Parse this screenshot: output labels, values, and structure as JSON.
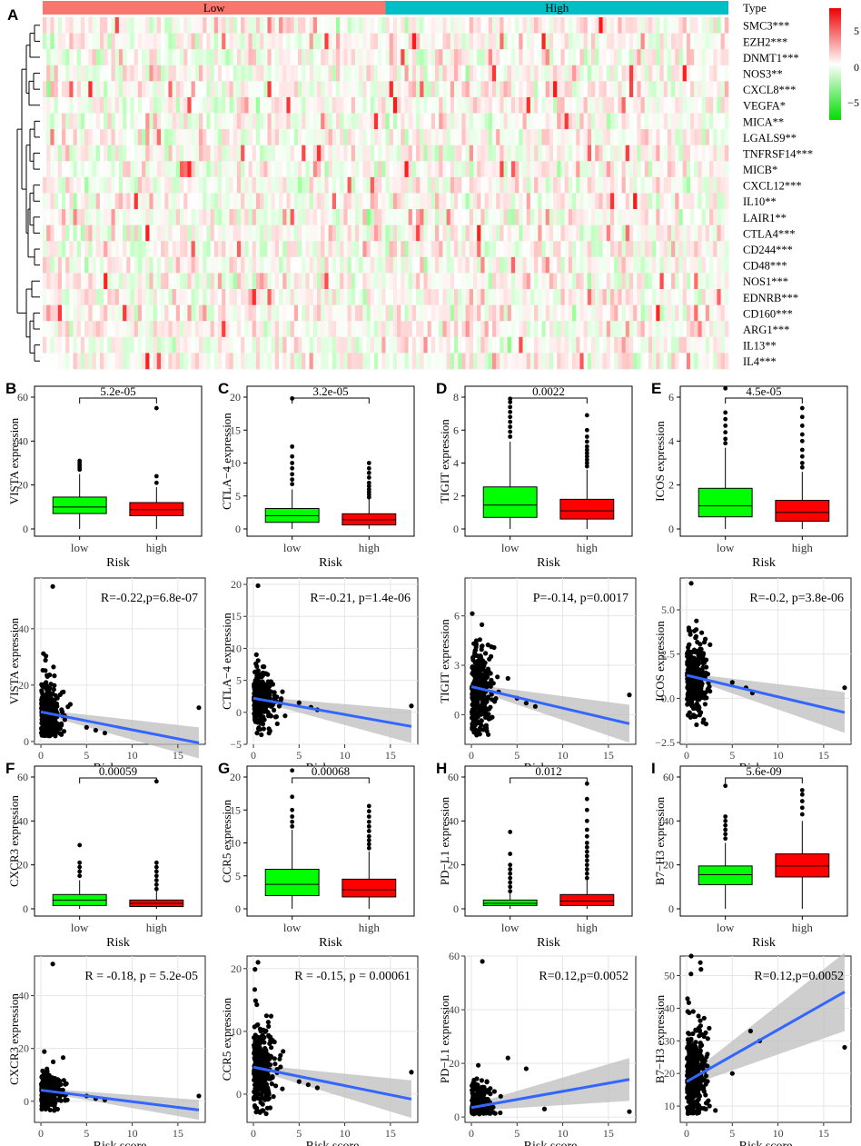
{
  "chart_data": [
    {
      "id": "A",
      "panel_label": "A",
      "type": "heatmap",
      "title": "",
      "annotation_title": "Type",
      "groups": [
        "Low",
        "High"
      ],
      "group_colors": [
        "#F8766D",
        "#00BFC4"
      ],
      "genes": [
        "SMC3***",
        "EZH2***",
        "DNMT1***",
        "NOS3**",
        "CXCL8***",
        "VEGFA*",
        "MICA**",
        "LGALS9**",
        "TNFRSF14***",
        "MICB*",
        "CXCL12***",
        "IL10**",
        "LAIR1**",
        "CTLA4***",
        "CD244***",
        "CD48***",
        "NOS1***",
        "EDNRB***",
        "CD160***",
        "ARG1***",
        "IL13**",
        "IL4***"
      ],
      "legend_ticks": [
        5,
        0,
        -5
      ],
      "color_low": "#00DD00",
      "color_mid": "#FFFFFF",
      "color_high": "#EE0000"
    },
    {
      "id": "B",
      "panel_label": "B",
      "type": "box",
      "title": "",
      "xlabel": "Risk",
      "ylabel": "VISTA expression",
      "categories": [
        "low",
        "high"
      ],
      "pvalue": "5.2e-05",
      "ylim": [
        0,
        60
      ],
      "yticks": [
        0,
        20,
        40,
        60
      ],
      "boxes": [
        {
          "q1": 7,
          "median": 10,
          "q3": 14.5,
          "whisker_low": 0,
          "whisker_high": 25,
          "outliers": [
            27,
            28,
            29,
            30,
            31
          ]
        },
        {
          "q1": 6,
          "median": 8.8,
          "q3": 12,
          "whisker_low": 0,
          "whisker_high": 19,
          "outliers": [
            21,
            24,
            55
          ]
        }
      ],
      "colors": [
        "#00FF00",
        "#FF0000"
      ]
    },
    {
      "id": "C",
      "panel_label": "C",
      "type": "box",
      "title": "",
      "xlabel": "Risk",
      "ylabel": "CTLA−4 expression",
      "categories": [
        "low",
        "high"
      ],
      "pvalue": "3.2e-05",
      "ylim": [
        0,
        20
      ],
      "yticks": [
        0,
        5,
        10,
        15,
        20
      ],
      "boxes": [
        {
          "q1": 1,
          "median": 2,
          "q3": 3.1,
          "whisker_low": 0,
          "whisker_high": 6,
          "outliers": [
            6.8,
            7.5,
            8.3,
            9.2,
            10,
            11,
            12.5,
            19.8
          ]
        },
        {
          "q1": 0.6,
          "median": 1.4,
          "q3": 2.3,
          "whisker_low": 0,
          "whisker_high": 4.5,
          "outliers": [
            4.8,
            5.2,
            5.6,
            6,
            6.5,
            7,
            7.8,
            8.5,
            9.2,
            10
          ]
        }
      ],
      "colors": [
        "#00FF00",
        "#FF0000"
      ]
    },
    {
      "id": "D",
      "panel_label": "D",
      "type": "box",
      "title": "",
      "xlabel": "Risk",
      "ylabel": "TIGIT expression",
      "categories": [
        "low",
        "high"
      ],
      "pvalue": "0.0022",
      "ylim": [
        0,
        8
      ],
      "yticks": [
        0,
        2,
        4,
        6,
        8
      ],
      "boxes": [
        {
          "q1": 0.7,
          "median": 1.45,
          "q3": 2.55,
          "whisker_low": 0,
          "whisker_high": 5.3,
          "outliers": [
            5.6,
            5.9,
            6.2,
            6.5,
            6.8,
            7.1,
            7.4,
            7.7,
            7.9
          ]
        },
        {
          "q1": 0.6,
          "median": 1.1,
          "q3": 1.8,
          "whisker_low": 0,
          "whisker_high": 3.6,
          "outliers": [
            3.8,
            4,
            4.2,
            4.4,
            4.6,
            4.8,
            5,
            5.3,
            5.6,
            6,
            6.9
          ]
        }
      ],
      "colors": [
        "#00FF00",
        "#FF0000"
      ]
    },
    {
      "id": "E",
      "panel_label": "E",
      "type": "box",
      "title": "",
      "xlabel": "Risk",
      "ylabel": "ICOS expression",
      "categories": [
        "low",
        "high"
      ],
      "pvalue": "4.5e-05",
      "ylim": [
        0,
        6
      ],
      "yticks": [
        0,
        2,
        4,
        6
      ],
      "boxes": [
        {
          "q1": 0.55,
          "median": 1.05,
          "q3": 1.85,
          "whisker_low": 0,
          "whisker_high": 3.7,
          "outliers": [
            3.9,
            4.1,
            4.4,
            4.7,
            5,
            5.3,
            6.4
          ]
        },
        {
          "q1": 0.35,
          "median": 0.75,
          "q3": 1.3,
          "whisker_low": 0,
          "whisker_high": 2.6,
          "outliers": [
            2.8,
            3,
            3.3,
            3.6,
            4,
            4.3,
            4.7,
            5.1,
            5.5
          ]
        }
      ],
      "colors": [
        "#00FF00",
        "#FF0000"
      ]
    },
    {
      "id": "F",
      "panel_label": "F",
      "type": "box",
      "title": "",
      "xlabel": "Risk",
      "ylabel": "CXCR3 expression",
      "categories": [
        "low",
        "high"
      ],
      "pvalue": "0.00059",
      "ylim": [
        0,
        60
      ],
      "yticks": [
        0,
        20,
        40,
        60
      ],
      "boxes": [
        {
          "q1": 1.5,
          "median": 4,
          "q3": 6.5,
          "whisker_low": 0,
          "whisker_high": 13,
          "outliers": [
            15,
            17,
            19,
            21,
            29
          ]
        },
        {
          "q1": 1,
          "median": 2.5,
          "q3": 4,
          "whisker_low": 0,
          "whisker_high": 8,
          "outliers": [
            9,
            11,
            13,
            15,
            17,
            19,
            21,
            58
          ]
        }
      ],
      "colors": [
        "#00FF00",
        "#FF0000"
      ]
    },
    {
      "id": "G",
      "panel_label": "G",
      "type": "box",
      "title": "",
      "xlabel": "Risk",
      "ylabel": "CCR5 expression",
      "categories": [
        "low",
        "high"
      ],
      "pvalue": "0.00068",
      "ylim": [
        0,
        20
      ],
      "yticks": [
        0,
        5,
        10,
        15,
        20
      ],
      "boxes": [
        {
          "q1": 2,
          "median": 3.7,
          "q3": 6,
          "whisker_low": 0,
          "whisker_high": 12,
          "outliers": [
            12.5,
            13.2,
            14,
            15,
            17,
            21
          ]
        },
        {
          "q1": 1.8,
          "median": 2.9,
          "q3": 4.5,
          "whisker_low": 0,
          "whisker_high": 8.7,
          "outliers": [
            9.2,
            9.8,
            10.4,
            11,
            11.8,
            12.5,
            13.2,
            14,
            14.8,
            15.6
          ]
        }
      ],
      "colors": [
        "#00FF00",
        "#FF0000"
      ]
    },
    {
      "id": "H",
      "panel_label": "H",
      "type": "box",
      "title": "",
      "xlabel": "Risk",
      "ylabel": "PD−L1 expression",
      "categories": [
        "low",
        "high"
      ],
      "pvalue": "0.012",
      "ylim": [
        0,
        60
      ],
      "yticks": [
        0,
        20,
        40,
        60
      ],
      "boxes": [
        {
          "q1": 1.5,
          "median": 2.5,
          "q3": 4,
          "whisker_low": 0,
          "whisker_high": 7,
          "outliers": [
            8,
            10,
            12,
            14,
            16,
            18,
            20,
            25,
            35
          ]
        },
        {
          "q1": 1.5,
          "median": 3.5,
          "q3": 6.5,
          "whisker_low": 0,
          "whisker_high": 13,
          "outliers": [
            14,
            16,
            18,
            20,
            22,
            24,
            26,
            28,
            30,
            33,
            36,
            40,
            45,
            50,
            57
          ]
        }
      ],
      "colors": [
        "#00FF00",
        "#FF0000"
      ]
    },
    {
      "id": "I",
      "panel_label": "I",
      "type": "box",
      "title": "",
      "xlabel": "Risk",
      "ylabel": "B7−H3 expression",
      "categories": [
        "low",
        "high"
      ],
      "pvalue": "5.6e-09",
      "ylim": [
        0,
        60
      ],
      "yticks": [
        0,
        20,
        40,
        60
      ],
      "boxes": [
        {
          "q1": 11,
          "median": 15.5,
          "q3": 19.5,
          "whisker_low": 0,
          "whisker_high": 30,
          "outliers": [
            32,
            34,
            36,
            38,
            40,
            42,
            56
          ]
        },
        {
          "q1": 14.5,
          "median": 19.5,
          "q3": 25,
          "whisker_low": 0,
          "whisker_high": 40,
          "outliers": [
            43,
            46,
            49,
            52,
            54
          ]
        }
      ],
      "colors": [
        "#00FF00",
        "#FF0000"
      ]
    },
    {
      "id": "B2",
      "type": "scatter",
      "xlabel": "Risk score",
      "ylabel": "VISTA expression",
      "annotation": "R=-0.22,p=6.8e-07",
      "xlim": [
        -0.7,
        18
      ],
      "ylim": [
        -1,
        58
      ],
      "xticks": [
        0,
        5,
        10,
        15
      ],
      "yticks": [
        0,
        20,
        40
      ],
      "fit": {
        "x": [
          0,
          17.3
        ],
        "y": [
          10.5,
          -0.5
        ]
      },
      "band": {
        "lo": [
          9.7,
          -6.0
        ],
        "hi": [
          11.3,
          5.0
        ]
      },
      "y_center": 9,
      "y_spread": 5,
      "cluster_max_x": 3.5,
      "seed": 11,
      "extra_points": [
        [
          1.3,
          55
        ],
        [
          17.3,
          12
        ],
        [
          5,
          5
        ],
        [
          6,
          4
        ],
        [
          7,
          3
        ]
      ]
    },
    {
      "id": "C2",
      "type": "scatter",
      "xlabel": "Risk score",
      "ylabel": "CTLA−4 expression",
      "annotation": "R=-0.21,  p=1.4e-06",
      "xlim": [
        -0.7,
        18
      ],
      "ylim": [
        -5,
        21
      ],
      "xticks": [
        0,
        5,
        10,
        15
      ],
      "yticks": [
        -5,
        0,
        5,
        10,
        15,
        20
      ],
      "fit": {
        "x": [
          0,
          17.3
        ],
        "y": [
          2.2,
          -2.2
        ]
      },
      "band": {
        "lo": [
          1.9,
          -4.8
        ],
        "hi": [
          2.5,
          0.4
        ]
      },
      "y_center": 2,
      "y_spread": 1.8,
      "cluster_max_x": 3.5,
      "seed": 23,
      "extra_points": [
        [
          0.5,
          19.8
        ],
        [
          17.3,
          1
        ],
        [
          5,
          1.5
        ],
        [
          6.3,
          0.8
        ],
        [
          7,
          0.4
        ]
      ]
    },
    {
      "id": "D2",
      "type": "scatter",
      "xlabel": "Risk score",
      "ylabel": "TIGIT expression",
      "annotation": "P=-0.14,  p=0.0017",
      "xlim": [
        -0.7,
        18
      ],
      "ylim": [
        -1.8,
        8.3
      ],
      "xticks": [
        0,
        5,
        10,
        15
      ],
      "yticks": [
        0,
        3,
        6
      ],
      "fit": {
        "x": [
          0,
          17.3
        ],
        "y": [
          1.7,
          -0.55
        ]
      },
      "band": {
        "lo": [
          1.55,
          -1.7
        ],
        "hi": [
          1.85,
          0.6
        ]
      },
      "y_center": 1.4,
      "y_spread": 1.2,
      "cluster_max_x": 3.5,
      "seed": 37,
      "extra_points": [
        [
          17.3,
          1.2
        ],
        [
          4,
          2.2
        ],
        [
          5,
          1
        ],
        [
          6,
          0.7
        ],
        [
          7,
          0.5
        ]
      ]
    },
    {
      "id": "E2",
      "type": "scatter",
      "xlabel": "Risk score",
      "ylabel": "ICOS expression",
      "annotation": "R=-0.2,  p=3.8e-06",
      "xlim": [
        -0.7,
        18
      ],
      "ylim": [
        -2.6,
        6.8
      ],
      "xticks": [
        0,
        5,
        10,
        15
      ],
      "yticks": [
        -2.5,
        0.0,
        2.5,
        5.0
      ],
      "fit": {
        "x": [
          0,
          17.3
        ],
        "y": [
          1.3,
          -0.8
        ]
      },
      "band": {
        "lo": [
          1.18,
          -1.95
        ],
        "hi": [
          1.42,
          0.35
        ]
      },
      "y_center": 1.1,
      "y_spread": 0.9,
      "cluster_max_x": 3.5,
      "seed": 41,
      "extra_points": [
        [
          0.5,
          6.5
        ],
        [
          17.3,
          0.6
        ],
        [
          5,
          0.9
        ],
        [
          6.5,
          0.6
        ],
        [
          7.2,
          0.3
        ]
      ]
    },
    {
      "id": "F2",
      "type": "scatter",
      "xlabel": "Risk score",
      "ylabel": "CXCR3 expression",
      "annotation": "R = -0.18, p = 5.2e-05",
      "xlim": [
        -0.7,
        18
      ],
      "ylim": [
        -8,
        55
      ],
      "xticks": [
        0,
        5,
        10,
        15
      ],
      "yticks": [
        0,
        20,
        40
      ],
      "fit": {
        "x": [
          0,
          17.3
        ],
        "y": [
          4.2,
          -3.3
        ]
      },
      "band": {
        "lo": [
          3.5,
          -7.0
        ],
        "hi": [
          4.9,
          0.5
        ]
      },
      "y_center": 4,
      "y_spread": 3,
      "cluster_max_x": 3.5,
      "seed": 53,
      "extra_points": [
        [
          1.3,
          52
        ],
        [
          17.3,
          2
        ],
        [
          5,
          2
        ],
        [
          6,
          1
        ],
        [
          7,
          0.5
        ]
      ]
    },
    {
      "id": "G2",
      "type": "scatter",
      "xlabel": "Risk score",
      "ylabel": "CCR5 expression",
      "annotation": "R = -0.15, p = 0.00061",
      "xlim": [
        -0.7,
        18
      ],
      "ylim": [
        -4.5,
        22
      ],
      "xticks": [
        0,
        5,
        10,
        15
      ],
      "yticks": [
        0,
        10,
        20
      ],
      "fit": {
        "x": [
          0,
          17.3
        ],
        "y": [
          4.3,
          -0.8
        ]
      },
      "band": {
        "lo": [
          3.9,
          -3.8
        ],
        "hi": [
          4.7,
          2.2
        ]
      },
      "y_center": 4,
      "y_spread": 2.6,
      "cluster_max_x": 3.5,
      "seed": 67,
      "extra_points": [
        [
          0.5,
          21
        ],
        [
          17.3,
          3.5
        ],
        [
          5,
          2
        ],
        [
          6,
          1.5
        ],
        [
          7,
          1
        ]
      ]
    },
    {
      "id": "H2",
      "type": "scatter",
      "xlabel": "Risk score",
      "ylabel": "PD−L1 expression",
      "annotation": "R=0.12,p=0.0052",
      "xlim": [
        -0.7,
        18
      ],
      "ylim": [
        -2,
        60
      ],
      "xticks": [
        0,
        5,
        10,
        15
      ],
      "yticks": [
        0,
        20,
        40,
        60
      ],
      "fit": {
        "x": [
          0,
          17.3
        ],
        "y": [
          3.5,
          14
        ]
      },
      "band": {
        "lo": [
          2.3,
          6
        ],
        "hi": [
          4.7,
          22
        ]
      },
      "y_center": 4,
      "y_spread": 4,
      "cluster_max_x": 3.5,
      "seed": 79,
      "extra_points": [
        [
          1.2,
          58
        ],
        [
          17.3,
          2
        ],
        [
          6,
          18
        ],
        [
          4,
          22
        ],
        [
          8,
          3
        ]
      ]
    },
    {
      "id": "I2",
      "type": "scatter",
      "xlabel": "Risk score",
      "ylabel": "B7−H3 expression",
      "annotation": "R=0.12,p=0.0052",
      "xlim": [
        -0.7,
        18
      ],
      "ylim": [
        5,
        56
      ],
      "xticks": [
        0,
        5,
        10,
        15
      ],
      "yticks": [
        10,
        20,
        30,
        40,
        50
      ],
      "fit": {
        "x": [
          0,
          17.3
        ],
        "y": [
          17.5,
          45
        ]
      },
      "band": {
        "lo": [
          16,
          33
        ],
        "hi": [
          19,
          57
        ]
      },
      "y_center": 20,
      "y_spread": 7,
      "cluster_max_x": 3.5,
      "seed": 97,
      "extra_points": [
        [
          0.5,
          56
        ],
        [
          1.5,
          54
        ],
        [
          17.3,
          28
        ],
        [
          7,
          33
        ],
        [
          8,
          30
        ],
        [
          5,
          20
        ]
      ]
    }
  ]
}
